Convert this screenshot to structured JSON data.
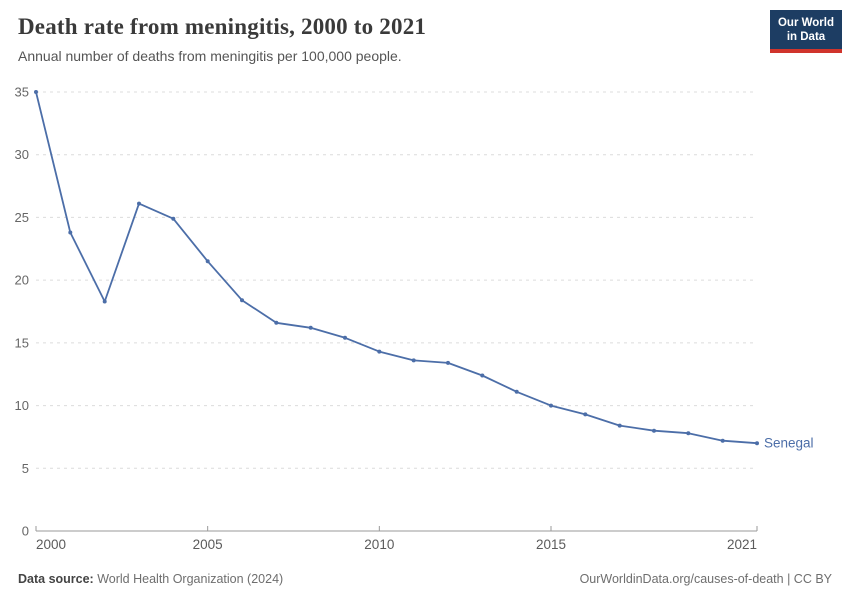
{
  "header": {
    "title": "Death rate from meningitis, 2000 to 2021",
    "subtitle": "Annual number of deaths from meningitis per 100,000 people."
  },
  "logo": {
    "line1": "Our World",
    "line2": "in Data"
  },
  "chart_data": {
    "type": "line",
    "title": "Death rate from meningitis, 2000 to 2021",
    "xlabel": "",
    "ylabel": "",
    "xlim": [
      2000,
      2021
    ],
    "ylim": [
      0,
      35
    ],
    "grid": true,
    "legend_position": "end-of-line",
    "xticks": [
      2000,
      2005,
      2010,
      2015,
      2021
    ],
    "yticks": [
      0,
      5,
      10,
      15,
      20,
      25,
      30,
      35
    ],
    "series": [
      {
        "name": "Senegal",
        "color": "#4c6ea8",
        "x": [
          2000,
          2001,
          2002,
          2003,
          2004,
          2005,
          2006,
          2007,
          2008,
          2009,
          2010,
          2011,
          2012,
          2013,
          2014,
          2015,
          2016,
          2017,
          2018,
          2019,
          2020,
          2021
        ],
        "values": [
          35.0,
          23.8,
          18.3,
          26.1,
          24.9,
          21.5,
          18.4,
          16.6,
          16.2,
          15.4,
          14.3,
          13.6,
          13.4,
          12.4,
          11.1,
          10.0,
          9.3,
          8.4,
          8.0,
          7.8,
          7.2,
          7.0
        ]
      }
    ]
  },
  "colors": {
    "line": "#4c6ea8",
    "grid": "#dcdcdc",
    "axis": "#9a9a9a",
    "y_tick_text": "#666666",
    "x_tick_text": "#5b5b5b",
    "series_label": "#4c6ea8"
  },
  "footer": {
    "datasource_label": "Data source:",
    "datasource_value": "World Health Organization (2024)",
    "credit": "OurWorldinData.org/causes-of-death | CC BY"
  }
}
